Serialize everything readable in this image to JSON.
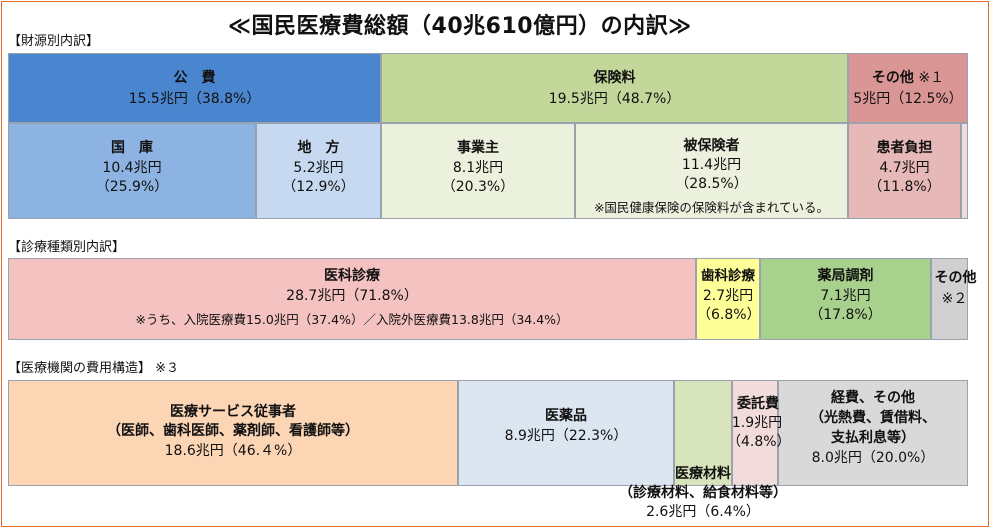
{
  "title": "≪国民医療費総額（40兆610億円）の内訳≫",
  "sections": {
    "funding": "【財源別内訳】",
    "treatment": "【診療種類別内訳】",
    "structure": "【医療機関の費用構造】",
    "structure_note": "※３"
  },
  "funding": {
    "public": {
      "label": "公　費",
      "value": "15.5兆円（38.8%）"
    },
    "insurance": {
      "label": "保険料",
      "value": "19.5兆円（48.7%）"
    },
    "other": {
      "label": "その他",
      "note": "※１",
      "value": "5兆円（12.5%）"
    },
    "national": {
      "label": "国　庫",
      "value": "10.4兆円",
      "pct": "（25.9%）"
    },
    "local": {
      "label": "地　方",
      "value": "5.2兆円",
      "pct": "（12.9%）"
    },
    "employer": {
      "label": "事業主",
      "value": "8.1兆円",
      "pct": "（20.3%）"
    },
    "insured": {
      "label": "被保険者",
      "value": "11.4兆円",
      "pct": "（28.5%）",
      "note": "※国民健康保険の保険料が含まれている。"
    },
    "patient": {
      "label": "患者負担",
      "value": "4.7兆円",
      "pct": "（11.8%）"
    }
  },
  "treatment": {
    "medical": {
      "label": "医科診療",
      "value": "28.7兆円（71.8%）",
      "note": "※うち、入院医療費15.0兆円（37.4%）／入院外医療費13.8兆円（34.4%）"
    },
    "dental": {
      "label": "歯科診療",
      "value": "2.7兆円",
      "pct": "（6.8%）"
    },
    "pharmacy": {
      "label": "薬局調剤",
      "value": "7.1兆円",
      "pct": "（17.8%）"
    },
    "other": {
      "label": "その他",
      "note": "※２"
    }
  },
  "structure": {
    "staff": {
      "label": "医療サービス従事者",
      "sub": "（医師、歯科医師、薬剤師、看護師等）",
      "value": "18.6兆円（46.４%）"
    },
    "drugs": {
      "label": "医薬品",
      "value": "8.9兆円（22.3%）"
    },
    "materials": {
      "label": "医療材料",
      "sub": "（診療材料、給食材料等）",
      "value": "2.6兆円（6.4%）"
    },
    "outsourcing": {
      "label": "委託費",
      "value": "1.9兆円",
      "pct": "（4.8%）"
    },
    "expenses": {
      "label": "経費、その他",
      "sub1": "（光熱費、賃借料、",
      "sub2": "支払利息等）",
      "value": "8.0兆円（20.0%）"
    }
  },
  "colors": {
    "public": "#4a86d0",
    "national": "#8db3e2",
    "local": "#c6d9f0",
    "insurance": "#c4d79b",
    "employer": "#ebf1dd",
    "insured": "#ebf1dd",
    "other_fund": "#da9694",
    "patient": "#e6b8b7",
    "medical": "#f4c2c0",
    "dental": "#ffff99",
    "pharmacy": "#a9d18e",
    "other_treat": "#d0d0d0",
    "staff": "#fcd5b4",
    "drugs": "#dce6f1",
    "materials": "#d8e4bc",
    "outsourcing": "#f2dcdb",
    "expenses": "#d9d9d9"
  }
}
